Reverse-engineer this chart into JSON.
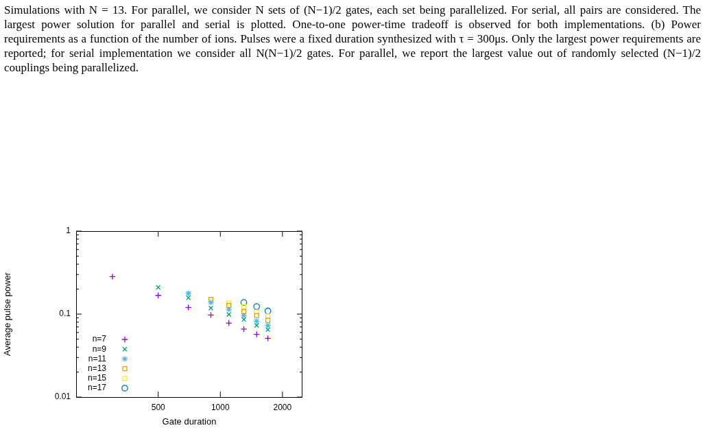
{
  "chart_data": {
    "type": "scatter",
    "annotations": [
      "Simulations with N = 13. For parallel, we consider N sets of (N−1)/2 gates, each set being parallelized. For serial, all pairs are considered. The largest power solution for parallel and serial is plotted. One-to-one power-time tradeoff is observed for both implementations. (b) Power requirements as a function of the number of ions. Pulses were a fixed duration synthesized with τ = 300μs. Only the largest power requirements are reported; for serial implementation we consider all N(N−1)/2 gates. For parallel, we report the largest value out of randomly selected (N−1)/2 couplings being parallelized."
    ],
    "xlabel": "Gate duration",
    "ylabel": "Average pulse power",
    "x": [
      300,
      500,
      700,
      900,
      1100,
      1300,
      1500,
      1700
    ],
    "series": [
      {
        "name": "n=7",
        "color": "#9400d3",
        "marker": "plus",
        "values": [
          0.283,
          0.168,
          0.12,
          0.0975,
          0.078,
          0.066,
          0.057,
          0.051
        ]
      },
      {
        "name": "n=9",
        "color": "#009e73",
        "marker": "cross",
        "values": [
          null,
          0.21,
          0.157,
          0.118,
          0.099,
          0.086,
          0.073,
          0.065
        ]
      },
      {
        "name": "n=11",
        "color": "#56b4e9",
        "values": [
          null,
          null,
          0.178,
          0.138,
          0.114,
          0.096,
          0.082,
          0.073
        ]
      },
      {
        "name": "n=13",
        "color": "#e69f00",
        "marker": "square",
        "values": [
          null,
          null,
          null,
          0.15,
          0.127,
          0.107,
          0.096,
          0.084
        ]
      },
      {
        "name": "n=15",
        "color": "#f0e442",
        "marker": "square",
        "values": [
          null,
          null,
          null,
          null,
          0.136,
          0.122,
          0.106,
          0.095
        ]
      },
      {
        "name": "n=17",
        "color": "#0072b2",
        "marker": "circle",
        "values": [
          null,
          null,
          null,
          null,
          null,
          0.138,
          0.123,
          0.109
        ]
      }
    ],
    "log": "xy",
    "xlim": [
      200,
      2500
    ],
    "ylim": [
      0.01,
      1
    ],
    "xticks": [
      500,
      1000,
      2000
    ],
    "yticks": [
      {
        "value": 0.01,
        "label": "0.01"
      },
      {
        "value": 0.02,
        "label": null
      },
      {
        "value": 0.03,
        "label": null
      },
      {
        "value": 0.04,
        "label": null
      },
      {
        "value": 0.05,
        "label": null
      },
      {
        "value": 0.06,
        "label": null
      },
      {
        "value": 0.07,
        "label": null
      },
      {
        "value": 0.08,
        "label": null
      },
      {
        "value": 0.09,
        "label": null
      },
      {
        "value": 0.1,
        "label": "0.1"
      },
      {
        "value": 0.2,
        "label": null
      },
      {
        "value": 0.3,
        "label": null
      },
      {
        "value": 0.4,
        "label": null
      },
      {
        "value": 0.5,
        "label": null
      },
      {
        "value": 0.6,
        "label": null
      },
      {
        "value": 0.7,
        "label": null
      },
      {
        "value": 0.8,
        "label": null
      },
      {
        "value": 0.9,
        "label": null
      },
      {
        "value": 1,
        "label": "1"
      }
    ],
    "grid": false,
    "legend": "bottom left"
  }
}
